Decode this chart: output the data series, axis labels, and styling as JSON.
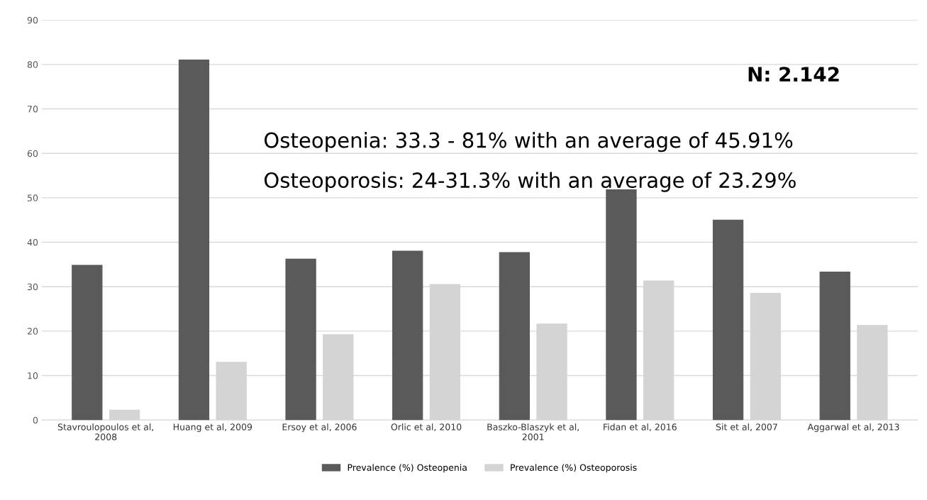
{
  "chart_data": {
    "type": "bar",
    "categories": [
      "Stavroulopoulos et al, 2008",
      "Huang et al, 2009",
      "Ersoy et al, 2006",
      "Orlic et al, 2010",
      "Baszko-Blaszyk et al, 2001",
      "Fidan et al, 2016",
      "Sit et al, 2007",
      "Aggarwal et al, 2013"
    ],
    "series": [
      {
        "name": "Prevalence (%) Osteopenia",
        "color": "#5a5a5a",
        "values": [
          34.8,
          81.0,
          36.2,
          38.0,
          37.7,
          51.8,
          45.0,
          33.3
        ]
      },
      {
        "name": "Prevalence (%) Osteoporosis",
        "color": "#d4d4d4",
        "values": [
          2.2,
          13.0,
          19.2,
          30.5,
          21.6,
          31.3,
          28.5,
          21.3
        ]
      }
    ],
    "ylim": [
      0,
      90
    ],
    "yticks": [
      0,
      10,
      20,
      30,
      40,
      50,
      60,
      70,
      80,
      90
    ],
    "grid": "y",
    "legend": "bottom",
    "annotations": [
      "N: 2.142",
      "Osteopenia: 33.3 - 81% with an average of 45.91%",
      "Osteoporosis: 24-31.3% with an average of 23.29%"
    ]
  }
}
